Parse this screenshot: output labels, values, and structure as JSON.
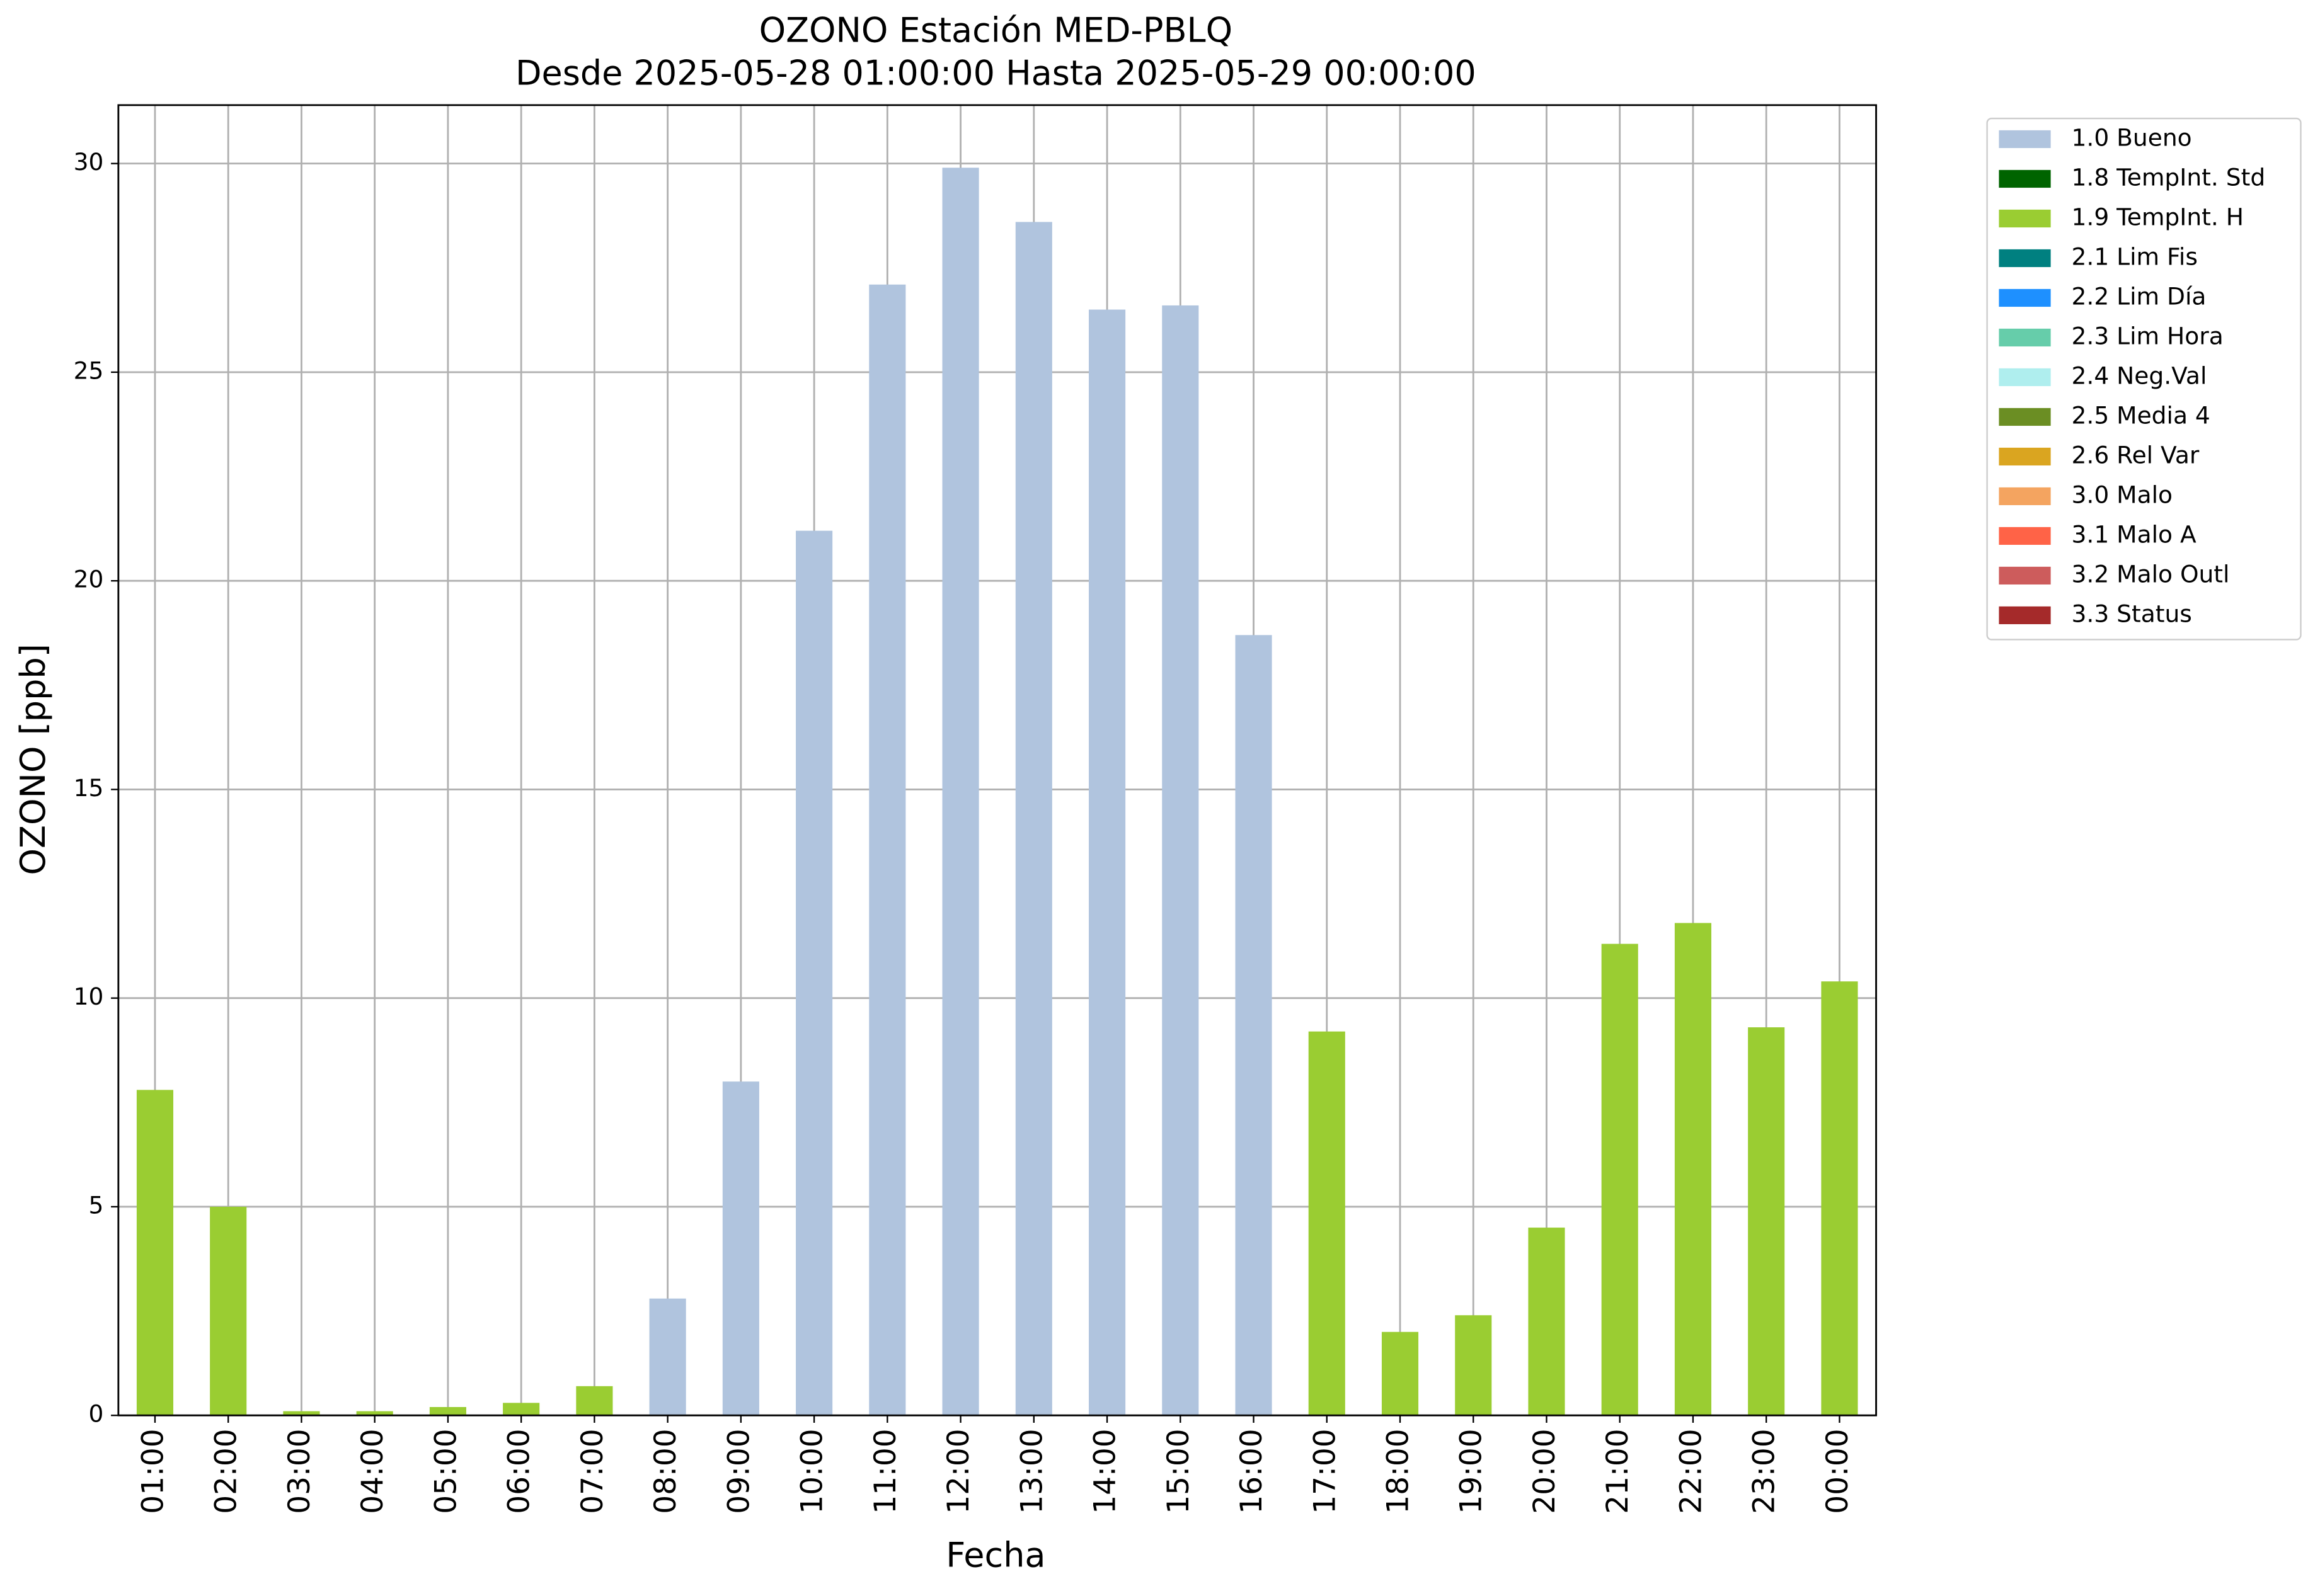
{
  "chart_data": {
    "type": "bar",
    "title": "OZONO Estación MED-PBLQ",
    "subtitle": "Desde 2025-05-28 01:00:00 Hasta 2025-05-29 00:00:00",
    "x_label": "Fecha",
    "y_label": "OZONO [ppb]",
    "categories": [
      "01:00",
      "02:00",
      "03:00",
      "04:00",
      "05:00",
      "06:00",
      "07:00",
      "08:00",
      "09:00",
      "10:00",
      "11:00",
      "12:00",
      "13:00",
      "14:00",
      "15:00",
      "16:00",
      "17:00",
      "18:00",
      "19:00",
      "20:00",
      "21:00",
      "22:00",
      "23:00",
      "00:00"
    ],
    "series": [
      {
        "name": "1.0 Bueno",
        "color": "#b0c4de",
        "values": [
          null,
          null,
          null,
          null,
          null,
          null,
          null,
          2.8,
          8.0,
          21.2,
          27.1,
          29.9,
          28.6,
          26.5,
          26.6,
          18.7,
          null,
          null,
          null,
          null,
          null,
          null,
          null,
          null
        ]
      },
      {
        "name": "1.8 TempInt. Std",
        "color": "#006400",
        "values": [
          null,
          null,
          null,
          null,
          null,
          null,
          null,
          null,
          null,
          null,
          null,
          null,
          null,
          null,
          null,
          null,
          null,
          null,
          null,
          null,
          null,
          null,
          null,
          null
        ]
      },
      {
        "name": "1.9 TempInt. H",
        "color": "#9acd32",
        "values": [
          7.8,
          5.0,
          0.1,
          0.1,
          0.2,
          0.3,
          0.7,
          null,
          null,
          null,
          null,
          null,
          null,
          null,
          null,
          null,
          9.2,
          2.0,
          2.4,
          4.5,
          11.3,
          11.8,
          9.3,
          10.4
        ]
      },
      {
        "name": "2.1 Lim Fis",
        "color": "#008080",
        "values": [
          null,
          null,
          null,
          null,
          null,
          null,
          null,
          null,
          null,
          null,
          null,
          null,
          null,
          null,
          null,
          null,
          null,
          null,
          null,
          null,
          null,
          null,
          null,
          null
        ]
      },
      {
        "name": "2.2 Lim Día",
        "color": "#1e90ff",
        "values": [
          null,
          null,
          null,
          null,
          null,
          null,
          null,
          null,
          null,
          null,
          null,
          null,
          null,
          null,
          null,
          null,
          null,
          null,
          null,
          null,
          null,
          null,
          null,
          null
        ]
      },
      {
        "name": "2.3 Lim Hora",
        "color": "#66cdaa",
        "values": [
          null,
          null,
          null,
          null,
          null,
          null,
          null,
          null,
          null,
          null,
          null,
          null,
          null,
          null,
          null,
          null,
          null,
          null,
          null,
          null,
          null,
          null,
          null,
          null
        ]
      },
      {
        "name": "2.4 Neg.Val",
        "color": "#afeeee",
        "values": [
          null,
          null,
          null,
          null,
          null,
          null,
          null,
          null,
          null,
          null,
          null,
          null,
          null,
          null,
          null,
          null,
          null,
          null,
          null,
          null,
          null,
          null,
          null,
          null
        ]
      },
      {
        "name": "2.5 Media 4",
        "color": "#6b8e23",
        "values": [
          null,
          null,
          null,
          null,
          null,
          null,
          null,
          null,
          null,
          null,
          null,
          null,
          null,
          null,
          null,
          null,
          null,
          null,
          null,
          null,
          null,
          null,
          null,
          null
        ]
      },
      {
        "name": "2.6 Rel Var",
        "color": "#daa520",
        "values": [
          null,
          null,
          null,
          null,
          null,
          null,
          null,
          null,
          null,
          null,
          null,
          null,
          null,
          null,
          null,
          null,
          null,
          null,
          null,
          null,
          null,
          null,
          null,
          null
        ]
      },
      {
        "name": "3.0 Malo",
        "color": "#f4a460",
        "values": [
          null,
          null,
          null,
          null,
          null,
          null,
          null,
          null,
          null,
          null,
          null,
          null,
          null,
          null,
          null,
          null,
          null,
          null,
          null,
          null,
          null,
          null,
          null,
          null
        ]
      },
      {
        "name": "3.1 Malo A",
        "color": "#ff6347",
        "values": [
          null,
          null,
          null,
          null,
          null,
          null,
          null,
          null,
          null,
          null,
          null,
          null,
          null,
          null,
          null,
          null,
          null,
          null,
          null,
          null,
          null,
          null,
          null,
          null
        ]
      },
      {
        "name": "3.2 Malo Outl",
        "color": "#cd5c5c",
        "values": [
          null,
          null,
          null,
          null,
          null,
          null,
          null,
          null,
          null,
          null,
          null,
          null,
          null,
          null,
          null,
          null,
          null,
          null,
          null,
          null,
          null,
          null,
          null,
          null
        ]
      },
      {
        "name": "3.3 Status",
        "color": "#a52a2a",
        "values": [
          null,
          null,
          null,
          null,
          null,
          null,
          null,
          null,
          null,
          null,
          null,
          null,
          null,
          null,
          null,
          null,
          null,
          null,
          null,
          null,
          null,
          null,
          null,
          null
        ]
      }
    ],
    "ylim": [
      0,
      31.4
    ],
    "yticks": [
      0,
      5,
      10,
      15,
      20,
      25,
      30
    ],
    "grid": true,
    "legend_position": "outside-right"
  }
}
